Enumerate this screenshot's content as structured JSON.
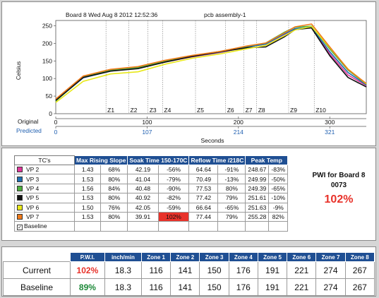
{
  "chart": {
    "header_board": "Board 8 Wed Aug 8 2012 12:52:36",
    "header_assembly": "pcb assembly-1",
    "y_axis_label": "Celsius",
    "x_axis_label": "Seconds",
    "row_original_label": "Original",
    "row_predicted_label": "Predicted",
    "original_ticks": [
      "0",
      "100",
      "200",
      "300"
    ],
    "predicted_ticks": [
      "0",
      "107",
      "214",
      "321"
    ],
    "y_ticks": [
      "0",
      "50",
      "100",
      "150",
      "200",
      "250"
    ],
    "zones": [
      "Z1",
      "Z2",
      "Z3",
      "Z4",
      "Z5",
      "Z6",
      "Z7",
      "Z8",
      "Z9",
      "Z10"
    ]
  },
  "chart_data": {
    "type": "line",
    "title": "",
    "xlabel": "Seconds",
    "ylabel": "Celsius",
    "xlim": [
      0,
      340
    ],
    "ylim": [
      0,
      265
    ],
    "series": [
      {
        "name": "VP 2",
        "color": "#e0369a",
        "x": [
          0,
          30,
          60,
          90,
          120,
          150,
          180,
          210,
          230,
          250,
          262,
          280,
          300,
          320,
          340
        ],
        "y": [
          38,
          103,
          122,
          130,
          147,
          162,
          174,
          190,
          198,
          225,
          241,
          245,
          170,
          110,
          80
        ]
      },
      {
        "name": "VP 3",
        "color": "#1f6fb0",
        "x": [
          0,
          30,
          60,
          90,
          120,
          150,
          180,
          210,
          230,
          250,
          262,
          280,
          300,
          320,
          340
        ],
        "y": [
          37,
          102,
          121,
          131,
          148,
          163,
          175,
          190,
          198,
          226,
          242,
          246,
          176,
          117,
          82
        ]
      },
      {
        "name": "VP 4",
        "color": "#4cae3d",
        "x": [
          0,
          30,
          60,
          90,
          120,
          150,
          180,
          210,
          230,
          250,
          262,
          280,
          300,
          320,
          340
        ],
        "y": [
          36,
          104,
          124,
          131,
          149,
          165,
          177,
          192,
          201,
          231,
          246,
          249,
          184,
          124,
          84
        ]
      },
      {
        "name": "VP 5",
        "color": "#111111",
        "x": [
          0,
          30,
          60,
          90,
          120,
          150,
          180,
          210,
          230,
          250,
          262,
          280,
          300,
          320,
          340
        ],
        "y": [
          38,
          103,
          121,
          128,
          147,
          163,
          176,
          188,
          190,
          218,
          239,
          244,
          165,
          103,
          76
        ]
      },
      {
        "name": "VP 6",
        "color": "#e8e81a",
        "x": [
          0,
          30,
          60,
          90,
          120,
          150,
          180,
          210,
          230,
          250,
          262,
          280,
          300,
          320,
          340
        ],
        "y": [
          32,
          92,
          113,
          119,
          141,
          158,
          170,
          185,
          194,
          221,
          238,
          248,
          188,
          127,
          85
        ]
      },
      {
        "name": "VP 7",
        "color": "#f07a1a",
        "x": [
          0,
          30,
          60,
          90,
          120,
          150,
          180,
          210,
          230,
          250,
          262,
          280,
          300,
          320,
          340
        ],
        "y": [
          42,
          107,
          126,
          134,
          152,
          166,
          177,
          193,
          201,
          229,
          247,
          255,
          190,
          126,
          86
        ]
      }
    ]
  },
  "tc_table": {
    "headers": [
      "TC's",
      "Max Rising Slope",
      "Soak Time 150-170C",
      "Reflow Time /218C",
      "Peak Temp"
    ],
    "baseline_label": "Baseline",
    "rows": [
      {
        "name": "VP 2",
        "color": "#e0369a",
        "slope": "1.43",
        "slope_pct": "68%",
        "soak": "42.19",
        "soak_pct": "-56%",
        "reflow": "64.64",
        "reflow_pct": "-91%",
        "peak": "248.67",
        "peak_pct": "-83%"
      },
      {
        "name": "VP 3",
        "color": "#1f6fb0",
        "slope": "1.53",
        "slope_pct": "80%",
        "soak": "41.04",
        "soak_pct": "-79%",
        "reflow": "70.49",
        "reflow_pct": "-13%",
        "peak": "249.99",
        "peak_pct": "-50%"
      },
      {
        "name": "VP 4",
        "color": "#4cae3d",
        "slope": "1.56",
        "slope_pct": "84%",
        "soak": "40.48",
        "soak_pct": "-90%",
        "reflow": "77.53",
        "reflow_pct": "80%",
        "peak": "249.39",
        "peak_pct": "-65%"
      },
      {
        "name": "VP 5",
        "color": "#111111",
        "slope": "1.53",
        "slope_pct": "80%",
        "soak": "40.92",
        "soak_pct": "-82%",
        "reflow": "77.42",
        "reflow_pct": "79%",
        "peak": "251.61",
        "peak_pct": "-10%"
      },
      {
        "name": "VP 6",
        "color": "#e8e81a",
        "slope": "1.50",
        "slope_pct": "76%",
        "soak": "42.05",
        "soak_pct": "-59%",
        "reflow": "66.64",
        "reflow_pct": "-65%",
        "peak": "251.63",
        "peak_pct": "-9%"
      },
      {
        "name": "VP 7",
        "color": "#f07a1a",
        "slope": "1.53",
        "slope_pct": "80%",
        "soak": "39.91",
        "soak_pct": "102%",
        "reflow": "77.44",
        "reflow_pct": "79%",
        "peak": "255.28",
        "peak_pct": "82%"
      }
    ]
  },
  "pwi": {
    "title_line1": "PWI for Board 8",
    "title_line2": "0073",
    "value": "102%"
  },
  "zone_table": {
    "headers": [
      "P.W.I.",
      "inch/min",
      "Zone 1",
      "Zone 2",
      "Zone 3",
      "Zone 4",
      "Zone 5",
      "Zone 6",
      "Zone 7",
      "Zone 8"
    ],
    "current": {
      "label": "Current",
      "pwi": "102%",
      "speed": "18.3",
      "zones": [
        "116",
        "141",
        "150",
        "176",
        "191",
        "221",
        "274",
        "267"
      ]
    },
    "baseline": {
      "label": "Baseline",
      "pwi": "89%",
      "speed": "18.3",
      "zones": [
        "116",
        "141",
        "150",
        "176",
        "191",
        "221",
        "274",
        "267"
      ]
    }
  }
}
